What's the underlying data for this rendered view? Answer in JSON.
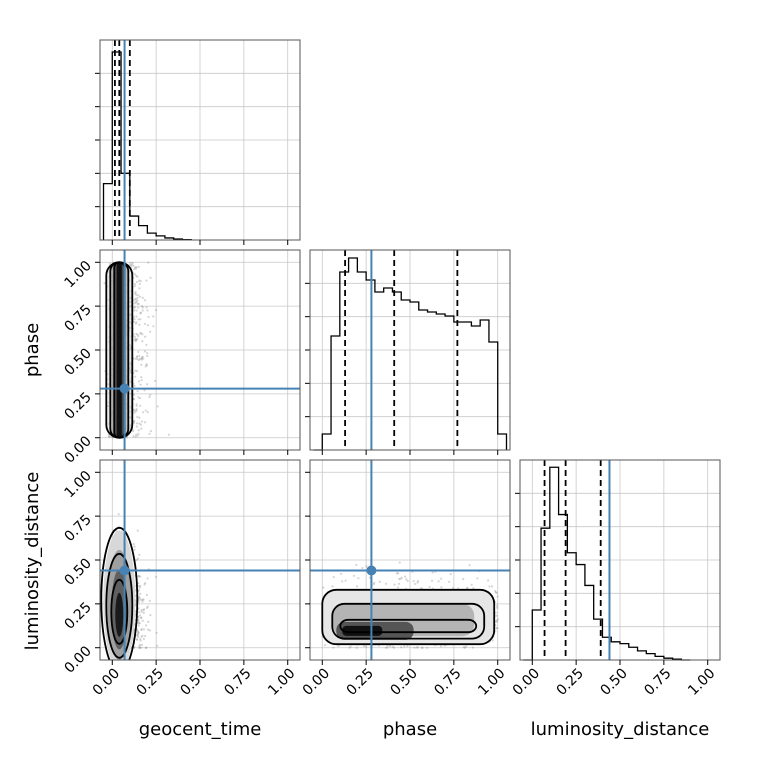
{
  "chart_data": {
    "type": "corner",
    "parameters": [
      "geocent_time",
      "phase",
      "luminosity_distance"
    ],
    "truths": {
      "geocent_time": 0.07,
      "phase": 0.28,
      "luminosity_distance": 0.44
    },
    "ticks": {
      "values": [
        0.0,
        0.25,
        0.5,
        0.75,
        1.0
      ],
      "labels": [
        "0.00",
        "0.25",
        "0.50",
        "0.75",
        "1.00"
      ]
    },
    "axis_range": [
      -0.07,
      1.07
    ],
    "colors": {
      "truth": "#4682b4",
      "points": "#888888",
      "contour": "#000000",
      "grid": "#c8c8c8"
    },
    "grid": true,
    "histograms": {
      "geocent_time": {
        "bin_edges": [
          -0.05,
          0.0,
          0.05,
          0.1,
          0.15,
          0.2,
          0.25,
          0.3,
          0.35,
          0.4,
          0.45
        ],
        "density": [
          1.65,
          5.5,
          1.95,
          0.7,
          0.42,
          0.2,
          0.12,
          0.06,
          0.03,
          0.01
        ],
        "ymax": 5.85,
        "quantiles": [
          0.015,
          0.04,
          0.1
        ]
      },
      "phase": {
        "bin_edges": [
          -0.05,
          0.0,
          0.05,
          0.1,
          0.15,
          0.2,
          0.25,
          0.3,
          0.35,
          0.4,
          0.45,
          0.5,
          0.55,
          0.6,
          0.65,
          0.7,
          0.75,
          0.8,
          0.85,
          0.9,
          0.95,
          1.0,
          1.05
        ],
        "density": [
          0.0,
          0.08,
          0.57,
          0.89,
          0.96,
          0.89,
          0.85,
          0.79,
          0.81,
          0.79,
          0.75,
          0.74,
          0.7,
          0.69,
          0.68,
          0.67,
          0.64,
          0.64,
          0.62,
          0.65,
          0.54,
          0.08
        ],
        "ymax": 1.0,
        "quantiles": [
          0.13,
          0.41,
          0.77
        ]
      },
      "luminosity_distance": {
        "bin_edges": [
          -0.05,
          0.0,
          0.05,
          0.1,
          0.15,
          0.2,
          0.25,
          0.3,
          0.35,
          0.4,
          0.45,
          0.5,
          0.55,
          0.6,
          0.65,
          0.7,
          0.75,
          0.8,
          0.85,
          0.9
        ],
        "density": [
          0.0,
          0.55,
          1.45,
          2.12,
          1.6,
          1.18,
          1.05,
          0.82,
          0.45,
          0.25,
          0.2,
          0.18,
          0.14,
          0.1,
          0.07,
          0.04,
          0.02,
          0.01,
          0.0
        ],
        "ymax": 2.2,
        "quantiles": [
          0.07,
          0.19,
          0.39
        ]
      }
    },
    "joint": [
      {
        "x_param": "geocent_time",
        "y_param": "phase",
        "x_spread": 0.07,
        "y_range": [
          0.0,
          1.0
        ],
        "peak_x": 0.04
      },
      {
        "x_param": "geocent_time",
        "y_param": "luminosity_distance",
        "x_spread": 0.07,
        "y_peak": 0.13,
        "y_spread": 0.2,
        "peak_x": 0.04
      },
      {
        "x_param": "phase",
        "y_param": "luminosity_distance",
        "x_range": [
          0.0,
          1.0
        ],
        "y_peak": 0.12,
        "y_spread": 0.12
      }
    ]
  }
}
